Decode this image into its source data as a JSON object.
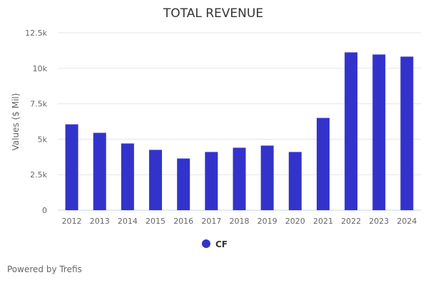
{
  "chart_data": {
    "type": "bar",
    "title": "TOTAL REVENUE",
    "xlabel": "",
    "ylabel": "Values ($ Mil)",
    "categories": [
      "2012",
      "2013",
      "2014",
      "2015",
      "2016",
      "2017",
      "2018",
      "2019",
      "2020",
      "2021",
      "2022",
      "2023",
      "2024"
    ],
    "series": [
      {
        "name": "CF",
        "color": "#3333cc",
        "values": [
          6050,
          5450,
          4700,
          4250,
          3640,
          4100,
          4400,
          4550,
          4100,
          6500,
          11120,
          10970,
          10820
        ]
      }
    ],
    "ylim": [
      0,
      12500
    ],
    "yticks": [
      0,
      2500,
      5000,
      7500,
      10000,
      12500
    ],
    "ytick_labels": [
      "0",
      "2.5k",
      "5k",
      "7.5k",
      "10k",
      "12.5k"
    ],
    "grid": true,
    "legend_position": "bottom"
  },
  "credit": "Powered by Trefis"
}
